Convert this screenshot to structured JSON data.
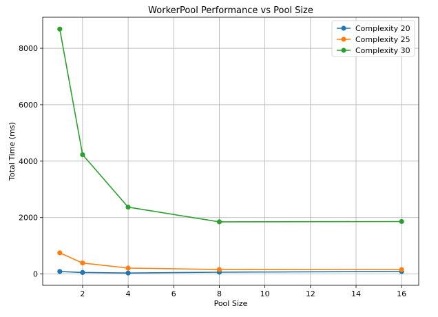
{
  "chart_data": {
    "type": "line",
    "title": "WorkerPool Performance vs Pool Size",
    "xlabel": "Pool Size",
    "ylabel": "Total Time (ms)",
    "x": [
      1,
      2,
      4,
      8,
      16
    ],
    "series": [
      {
        "name": "Complexity 20",
        "color": "#1f77b4",
        "values": [
          90,
          55,
          35,
          65,
          90
        ]
      },
      {
        "name": "Complexity 25",
        "color": "#ff7f0e",
        "values": [
          750,
          390,
          210,
          160,
          155
        ]
      },
      {
        "name": "Complexity 30",
        "color": "#2ca02c",
        "values": [
          8680,
          4230,
          2370,
          1850,
          1860
        ]
      }
    ],
    "xlim": [
      0.25,
      16.75
    ],
    "ylim": [
      -400,
      9100
    ],
    "xticks": [
      2,
      4,
      6,
      8,
      10,
      12,
      14,
      16
    ],
    "yticks": [
      0,
      2000,
      4000,
      6000,
      8000
    ],
    "grid": true,
    "legend_position": "top-right",
    "marker": "circle"
  }
}
